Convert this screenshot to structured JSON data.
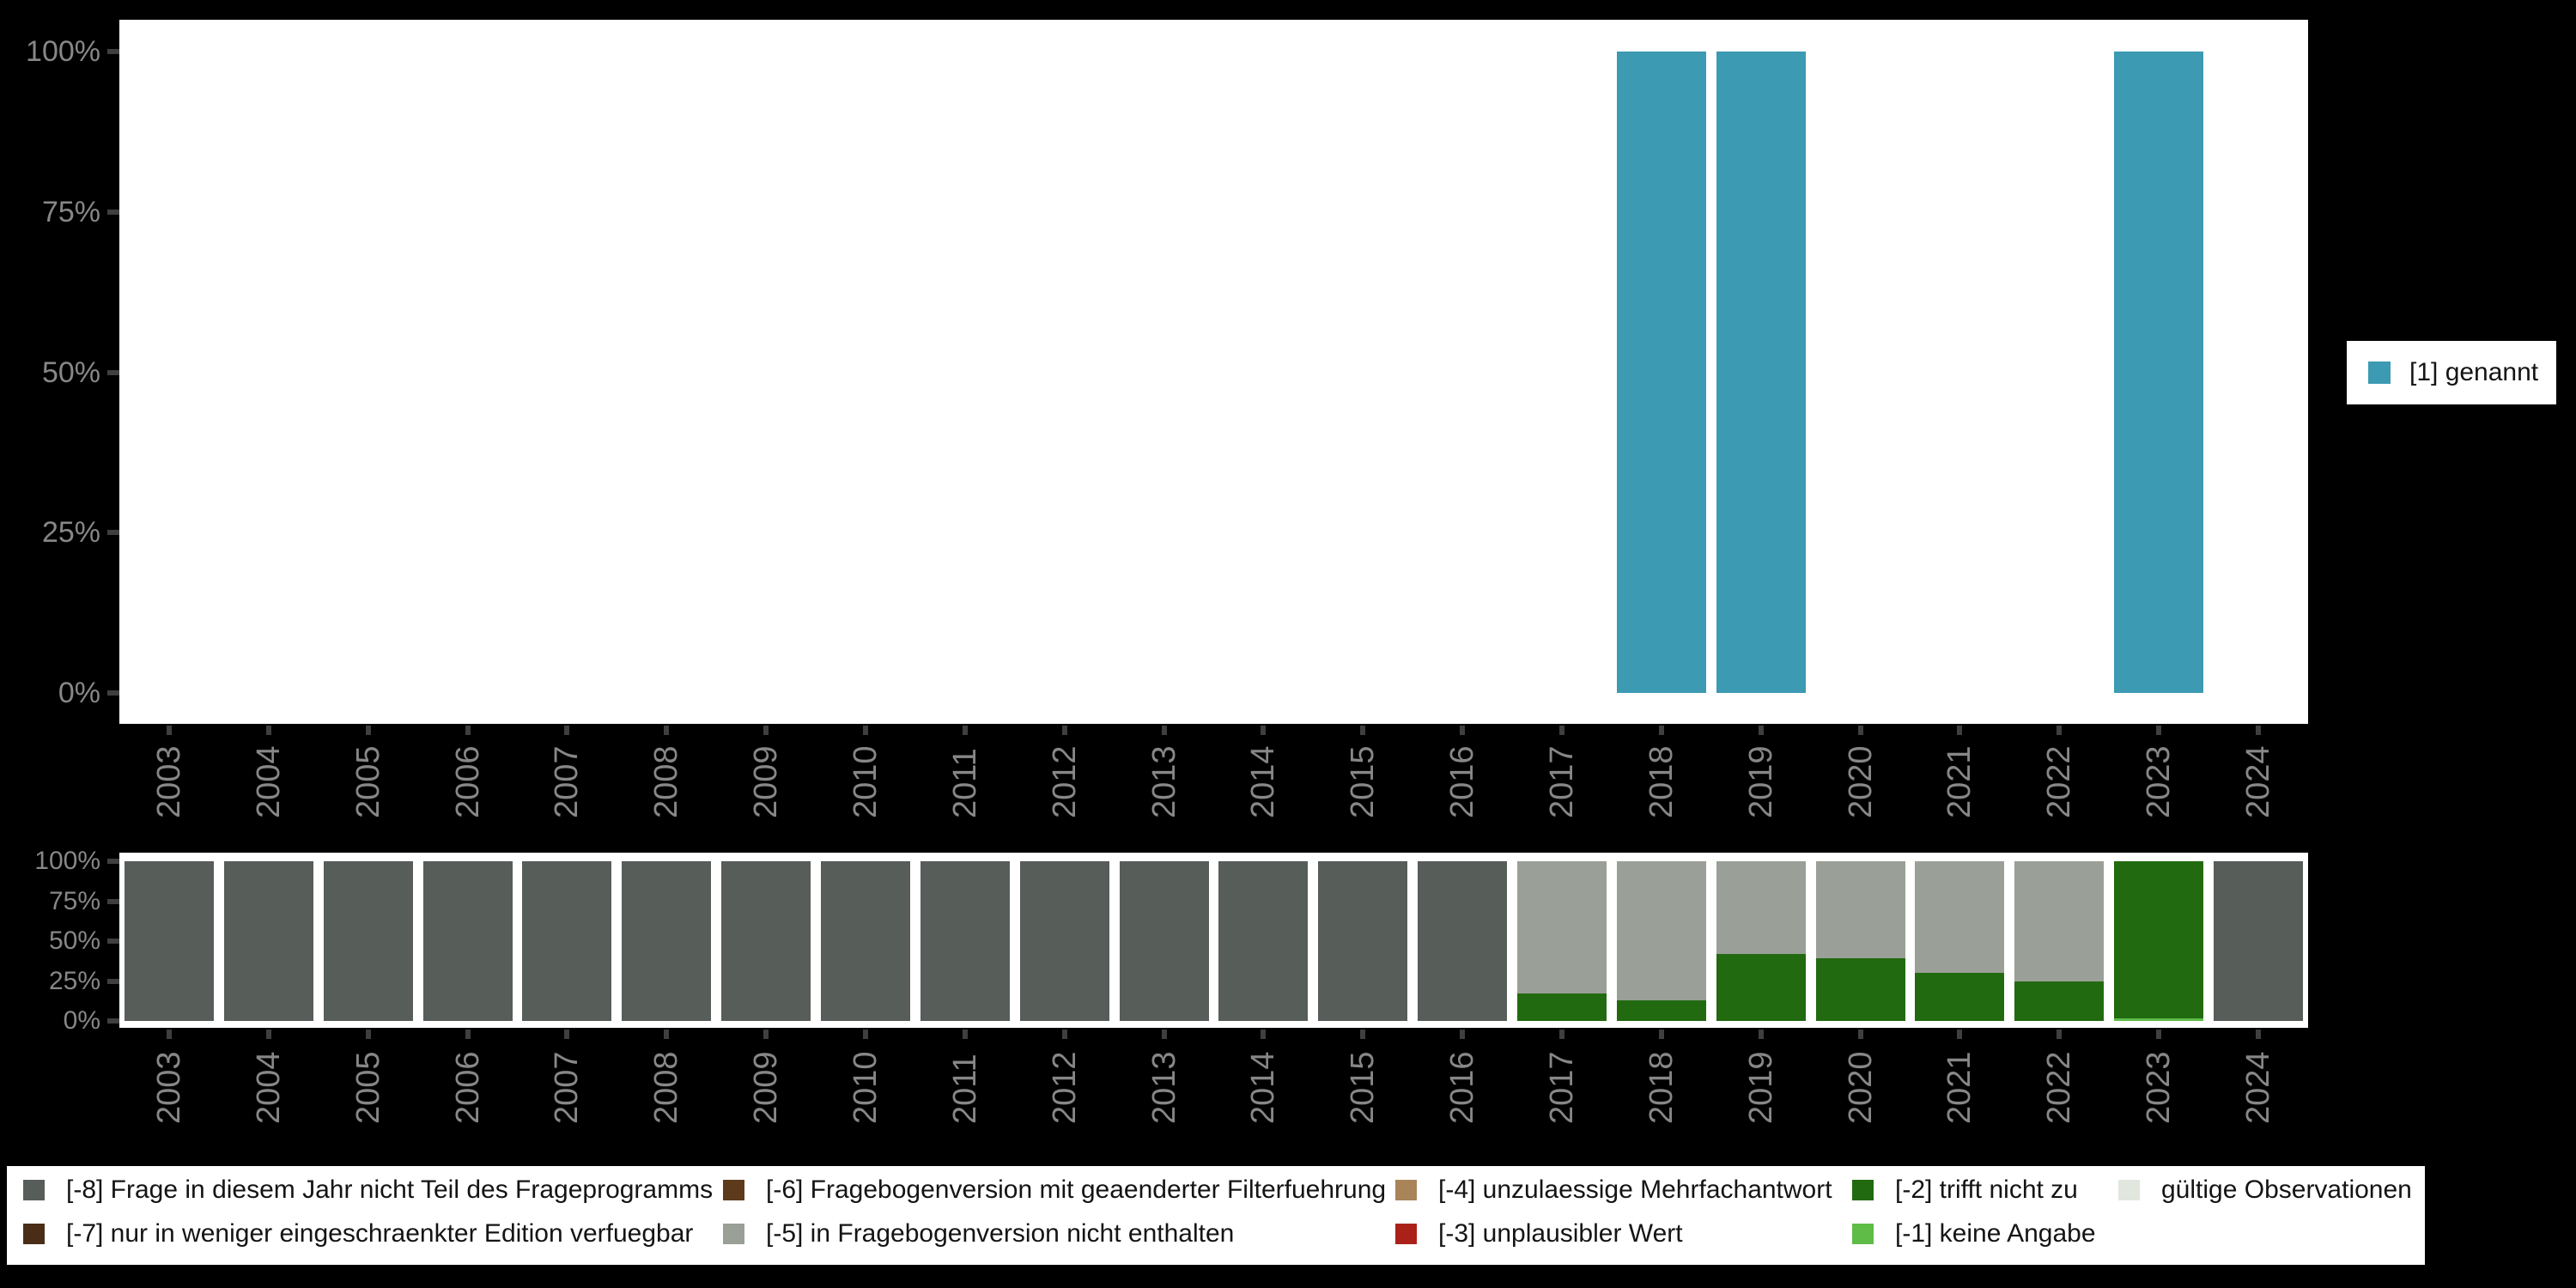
{
  "colors": {
    "background": "#000000",
    "panel": "#ffffff",
    "axis_label": "#878787",
    "tick": "#3f3f3f",
    "legend_text": "#141414",
    "mentioned": "#3C9AB3",
    "miss_8": "#575D59",
    "miss_7": "#4A2D16",
    "miss_6": "#5C3A1B",
    "miss_5": "#9A9F97",
    "miss_4": "#A88458",
    "miss_3": "#AA211A",
    "miss_2": "#216A10",
    "miss_1": "#5EBC47",
    "valid": "#E1E6DF"
  },
  "right_legend": {
    "items": [
      {
        "label": "[1] genannt",
        "color_key": "mentioned"
      }
    ]
  },
  "bottom_legend": {
    "rows": [
      [
        {
          "label": "[-8] Frage in diesem Jahr nicht Teil des Frageprogramms",
          "color_key": "miss_8"
        },
        {
          "label": "[-6] Fragebogenversion mit geaenderter Filterfuehrung",
          "color_key": "miss_6"
        },
        {
          "label": "[-4] unzulaessige Mehrfachantwort",
          "color_key": "miss_4"
        },
        {
          "label": "[-2] trifft nicht zu",
          "color_key": "miss_2"
        },
        {
          "label": "gültige Observationen",
          "color_key": "valid"
        }
      ],
      [
        {
          "label": "[-7] nur in weniger eingeschraenkter Edition verfuegbar",
          "color_key": "miss_7"
        },
        {
          "label": "[-5] in Fragebogenversion nicht enthalten",
          "color_key": "miss_5"
        },
        {
          "label": "[-3] unplausibler Wert",
          "color_key": "miss_3"
        },
        {
          "label": "[-1] keine Angabe",
          "color_key": "miss_1"
        }
      ]
    ]
  },
  "chart_data": [
    {
      "type": "bar",
      "title": "",
      "categories": [
        "2003",
        "2004",
        "2005",
        "2006",
        "2007",
        "2008",
        "2009",
        "2010",
        "2011",
        "2012",
        "2013",
        "2014",
        "2015",
        "2016",
        "2017",
        "2018",
        "2019",
        "2020",
        "2021",
        "2022",
        "2023",
        "2024"
      ],
      "y_tick_labels": [
        "100%",
        "75%",
        "50%",
        "25%",
        "0%"
      ],
      "y_ticks": [
        100,
        75,
        50,
        25,
        0
      ],
      "ylim": [
        0,
        100
      ],
      "grid": false,
      "legend_position": "right",
      "series": [
        {
          "name": "[1] genannt",
          "color_key": "mentioned",
          "values": [
            0,
            0,
            0,
            0,
            0,
            0,
            0,
            0,
            0,
            0,
            0,
            0,
            0,
            0,
            0,
            100,
            100,
            0,
            0,
            0,
            100,
            0
          ]
        }
      ]
    },
    {
      "type": "bar",
      "stacked": true,
      "title": "",
      "categories": [
        "2003",
        "2004",
        "2005",
        "2006",
        "2007",
        "2008",
        "2009",
        "2010",
        "2011",
        "2012",
        "2013",
        "2014",
        "2015",
        "2016",
        "2017",
        "2018",
        "2019",
        "2020",
        "2021",
        "2022",
        "2023",
        "2024"
      ],
      "y_tick_labels": [
        "100%",
        "75%",
        "50%",
        "25%",
        "0%"
      ],
      "y_ticks": [
        100,
        75,
        50,
        25,
        0
      ],
      "ylim": [
        0,
        100
      ],
      "grid": false,
      "legend_position": "bottom",
      "series": [
        {
          "name": "[-1] keine Angabe",
          "color_key": "miss_1",
          "values": [
            0,
            0,
            0,
            0,
            0,
            0,
            0,
            0,
            0,
            0,
            0,
            0,
            0,
            0,
            0,
            0,
            0,
            0,
            0,
            0,
            1.5,
            0
          ]
        },
        {
          "name": "[-2] trifft nicht zu",
          "color_key": "miss_2",
          "values": [
            0,
            0,
            0,
            0,
            0,
            0,
            0,
            0,
            0,
            0,
            0,
            0,
            0,
            0,
            17,
            13,
            42,
            39,
            30,
            25,
            98.5,
            0
          ]
        },
        {
          "name": "[-5] in Fragebogenversion nicht enthalten",
          "color_key": "miss_5",
          "values": [
            0,
            0,
            0,
            0,
            0,
            0,
            0,
            0,
            0,
            0,
            0,
            0,
            0,
            0,
            83,
            87,
            58,
            61,
            70,
            75,
            0,
            0
          ]
        },
        {
          "name": "[-8] Frage in diesem Jahr nicht Teil des Frageprogramms",
          "color_key": "miss_8",
          "values": [
            100,
            100,
            100,
            100,
            100,
            100,
            100,
            100,
            100,
            100,
            100,
            100,
            100,
            100,
            0,
            0,
            0,
            0,
            0,
            0,
            0,
            100
          ]
        }
      ]
    }
  ]
}
